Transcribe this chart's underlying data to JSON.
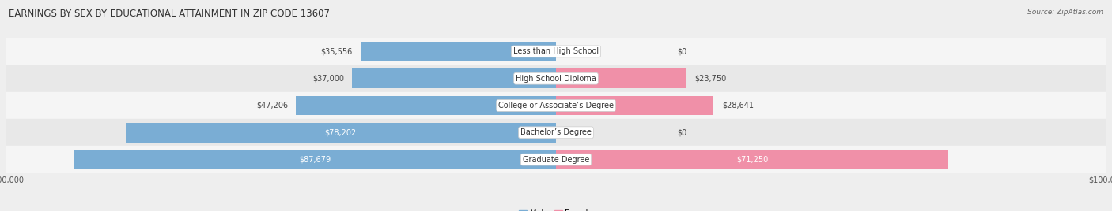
{
  "title": "EARNINGS BY SEX BY EDUCATIONAL ATTAINMENT IN ZIP CODE 13607",
  "source": "Source: ZipAtlas.com",
  "categories": [
    "Less than High School",
    "High School Diploma",
    "College or Associate’s Degree",
    "Bachelor’s Degree",
    "Graduate Degree"
  ],
  "male_values": [
    35556,
    37000,
    47206,
    78202,
    87679
  ],
  "female_values": [
    0,
    23750,
    28641,
    0,
    71250
  ],
  "max_value": 100000,
  "male_color": "#7aadd4",
  "female_color": "#f090a8",
  "bg_color": "#eeeeee",
  "row_colors": [
    "#f5f5f5",
    "#e8e8e8",
    "#f5f5f5",
    "#e8e8e8",
    "#f5f5f5"
  ],
  "title_fontsize": 8.5,
  "label_fontsize": 7.0,
  "tick_fontsize": 7.0,
  "source_fontsize": 6.5
}
